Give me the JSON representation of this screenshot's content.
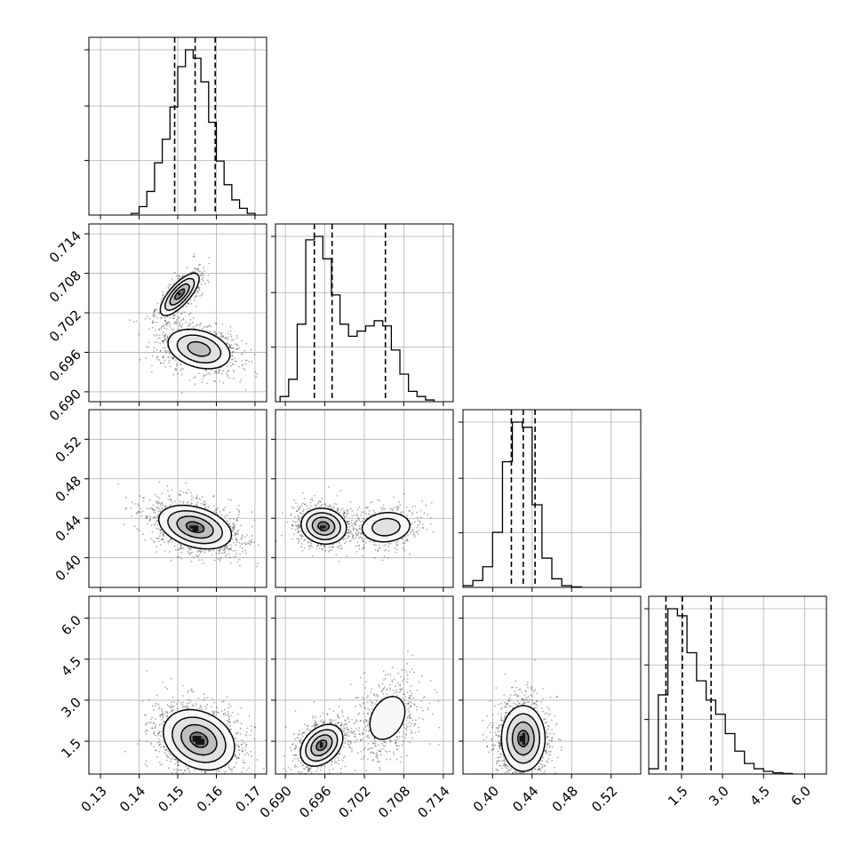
{
  "chart_data": {
    "type": "corner",
    "n_params": 4,
    "parameters": [
      {
        "ticks": [
          0.13,
          0.14,
          0.15,
          0.16,
          0.17
        ],
        "tick_labels": [
          "0.13",
          "0.14",
          "0.15",
          "0.16",
          "0.17"
        ],
        "range": [
          0.127,
          0.173
        ]
      },
      {
        "ticks": [
          0.69,
          0.696,
          0.702,
          0.708,
          0.714
        ],
        "tick_labels": [
          "0.690",
          "0.696",
          "0.702",
          "0.708",
          "0.714"
        ],
        "range": [
          0.6885,
          0.7155
        ]
      },
      {
        "ticks": [
          0.4,
          0.44,
          0.48,
          0.52
        ],
        "tick_labels": [
          "0.40",
          "0.44",
          "0.48",
          "0.52"
        ],
        "range": [
          0.37,
          0.55
        ]
      },
      {
        "ticks": [
          1.5,
          3.0,
          4.5,
          6.0
        ],
        "tick_labels": [
          "1.5",
          "3.0",
          "4.5",
          "6.0"
        ],
        "range": [
          0.3,
          6.8
        ]
      }
    ],
    "histograms": [
      {
        "param": 0,
        "bins": [
          0.138,
          0.14,
          0.142,
          0.144,
          0.146,
          0.148,
          0.15,
          0.152,
          0.154,
          0.156,
          0.158,
          0.16,
          0.162,
          0.164,
          0.166,
          0.168,
          0.17
        ],
        "counts": [
          0.01,
          0.05,
          0.14,
          0.31,
          0.45,
          0.64,
          0.88,
          0.98,
          0.93,
          0.79,
          0.55,
          0.32,
          0.18,
          0.09,
          0.04,
          0.01
        ],
        "quantiles": [
          0.1492,
          0.1545,
          0.1597
        ]
      },
      {
        "param": 1,
        "bins": [
          0.6892,
          0.6905,
          0.6918,
          0.6931,
          0.6944,
          0.6957,
          0.697,
          0.6983,
          0.6996,
          0.7009,
          0.7022,
          0.7035,
          0.7048,
          0.7061,
          0.7074,
          0.7087,
          0.71,
          0.7113,
          0.7126
        ],
        "counts": [
          0.03,
          0.13,
          0.45,
          0.94,
          0.96,
          0.83,
          0.62,
          0.45,
          0.38,
          0.41,
          0.44,
          0.47,
          0.44,
          0.3,
          0.16,
          0.06,
          0.03,
          0.01
        ],
        "quantiles": [
          0.6944,
          0.6971,
          0.7052
        ]
      },
      {
        "param": 2,
        "bins": [
          0.37,
          0.38,
          0.39,
          0.4,
          0.41,
          0.42,
          0.43,
          0.44,
          0.45,
          0.46,
          0.47,
          0.48,
          0.49
        ],
        "counts": [
          0.01,
          0.04,
          0.12,
          0.32,
          0.73,
          0.96,
          0.93,
          0.48,
          0.17,
          0.05,
          0.01,
          0.003
        ],
        "quantiles": [
          0.419,
          0.431,
          0.443
        ]
      },
      {
        "param": 3,
        "bins": [
          0.3,
          0.65,
          1.0,
          1.35,
          1.7,
          2.05,
          2.4,
          2.75,
          3.1,
          3.45,
          3.8,
          4.15,
          4.5,
          4.85,
          5.2,
          5.55
        ],
        "counts": [
          0.03,
          0.45,
          0.94,
          0.9,
          0.69,
          0.53,
          0.42,
          0.34,
          0.23,
          0.13,
          0.06,
          0.03,
          0.015,
          0.007,
          0.003
        ],
        "quantiles": [
          0.93,
          1.53,
          2.58
        ]
      }
    ],
    "density_panels": [
      {
        "x_param": 0,
        "y_param": 1,
        "modes": [
          {
            "mx": 0.1555,
            "my": 0.6965,
            "sx": 0.0043,
            "sy": 0.0016,
            "rho": -0.3,
            "w": 0.65
          },
          {
            "mx": 0.1505,
            "my": 0.7048,
            "sx": 0.0025,
            "sy": 0.0016,
            "rho": 0.75,
            "w": 0.35
          }
        ]
      },
      {
        "x_param": 0,
        "y_param": 2,
        "modes": [
          {
            "mx": 0.1545,
            "my": 0.431,
            "sx": 0.0047,
            "sy": 0.011,
            "rho": -0.35,
            "w": 1.0
          }
        ]
      },
      {
        "x_param": 1,
        "y_param": 2,
        "modes": [
          {
            "mx": 0.6958,
            "my": 0.432,
            "sx": 0.0017,
            "sy": 0.009,
            "rho": -0.1,
            "w": 0.6
          },
          {
            "mx": 0.7053,
            "my": 0.431,
            "sx": 0.0022,
            "sy": 0.009,
            "rho": 0.1,
            "w": 0.4
          }
        ]
      },
      {
        "x_param": 0,
        "y_param": 3,
        "modes": [
          {
            "mx": 0.1555,
            "my": 1.55,
            "sx": 0.0046,
            "sy": 0.55,
            "rho": -0.25,
            "w": 1.0
          }
        ]
      },
      {
        "x_param": 1,
        "y_param": 3,
        "modes": [
          {
            "mx": 0.6955,
            "my": 1.35,
            "sx": 0.0016,
            "sy": 0.38,
            "rho": 0.35,
            "w": 0.6
          },
          {
            "mx": 0.7055,
            "my": 2.35,
            "sx": 0.0022,
            "sy": 0.65,
            "rho": 0.3,
            "w": 0.4
          }
        ]
      },
      {
        "x_param": 2,
        "y_param": 3,
        "modes": [
          {
            "mx": 0.431,
            "my": 1.6,
            "sx": 0.011,
            "sy": 0.6,
            "rho": 0.0,
            "w": 1.0
          }
        ]
      }
    ],
    "grid": true,
    "contour_levels": [
      0.1175,
      0.3935,
      0.6753,
      0.8647
    ],
    "title": "",
    "xlabel": "",
    "ylabel": ""
  }
}
